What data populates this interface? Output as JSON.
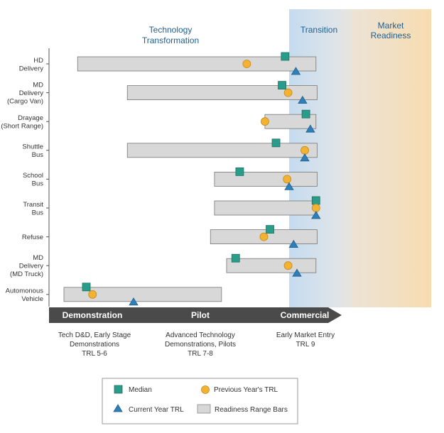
{
  "zones": {
    "tech_line1": "Technology",
    "tech_line2": "Transformation",
    "transition": "Transition",
    "market_line1": "Market",
    "market_line2": "Readiness"
  },
  "arrow": {
    "demonstration": "Demonstration",
    "pilot": "Pilot",
    "commercial": "Commercial"
  },
  "stages": {
    "demo_line1": "Tech D&D, Early Stage",
    "demo_line2": "Demonstrations",
    "demo_line3": "TRL 5-6",
    "pilot_line1": "Advanced Technology",
    "pilot_line2": "Demonstrations, Pilots",
    "pilot_line3": "TRL 7-8",
    "comm_line1": "Early Market Entry",
    "comm_line2": "TRL 9"
  },
  "legend": {
    "median": "Median",
    "previous": "Previous Year's TRL",
    "current": "Current Year TRL",
    "range": "Readiness Range Bars"
  },
  "colors": {
    "median": "#2a9d8a",
    "previous": "#f4b232",
    "current": "#2f7fb8",
    "bar": "#d8d8d8",
    "arrow": "#4a4a4a",
    "transition_top": "#b9d3ea",
    "market": "#f6dcb2"
  },
  "chart_data": {
    "type": "range",
    "categories": [
      {
        "lines": [
          "HD",
          "Delivery"
        ]
      },
      {
        "lines": [
          "MD",
          "Delivery",
          "(Cargo Van)"
        ]
      },
      {
        "lines": [
          "Drayage",
          "(Short Range)"
        ]
      },
      {
        "lines": [
          "Shuttle",
          "Bus"
        ]
      },
      {
        "lines": [
          "School",
          "Bus"
        ]
      },
      {
        "lines": [
          "Transit",
          "Bus"
        ]
      },
      {
        "lines": [
          "Refuse"
        ]
      },
      {
        "lines": [
          "MD",
          "Delivery",
          "(MD Truck)"
        ]
      },
      {
        "lines": [
          "Automonous",
          "Vehicle"
        ]
      }
    ],
    "x_scale_note": "position 0 = start of Demonstration, 1 = start of Pilot, 2 = start of Commercial, 2.47 = end of range",
    "ranges": [
      {
        "min": 0.11,
        "max": 2.24,
        "median": 1.96,
        "previous": 1.58,
        "current": 2.06
      },
      {
        "min": 0.51,
        "max": 2.25,
        "median": 1.93,
        "previous": 1.99,
        "current": 2.12
      },
      {
        "min": 1.76,
        "max": 2.24,
        "median": 2.15,
        "previous": 1.76,
        "current": 2.19
      },
      {
        "min": 0.51,
        "max": 2.25,
        "median": 1.87,
        "previous": 2.14,
        "current": 2.14
      },
      {
        "min": 1.26,
        "max": 2.25,
        "median": 1.51,
        "previous": 1.98,
        "current": 2.0
      },
      {
        "min": 1.26,
        "max": 2.25,
        "median": 2.24,
        "previous": 2.24,
        "current": 2.24
      },
      {
        "min": 1.22,
        "max": 2.25,
        "median": 1.81,
        "previous": 1.75,
        "current": 2.04
      },
      {
        "min": 1.38,
        "max": 2.24,
        "median": 1.47,
        "previous": 1.99,
        "current": 2.07
      },
      {
        "min": 0.0,
        "max": 1.33,
        "median": 0.18,
        "previous": 0.23,
        "current": 0.56
      }
    ]
  }
}
